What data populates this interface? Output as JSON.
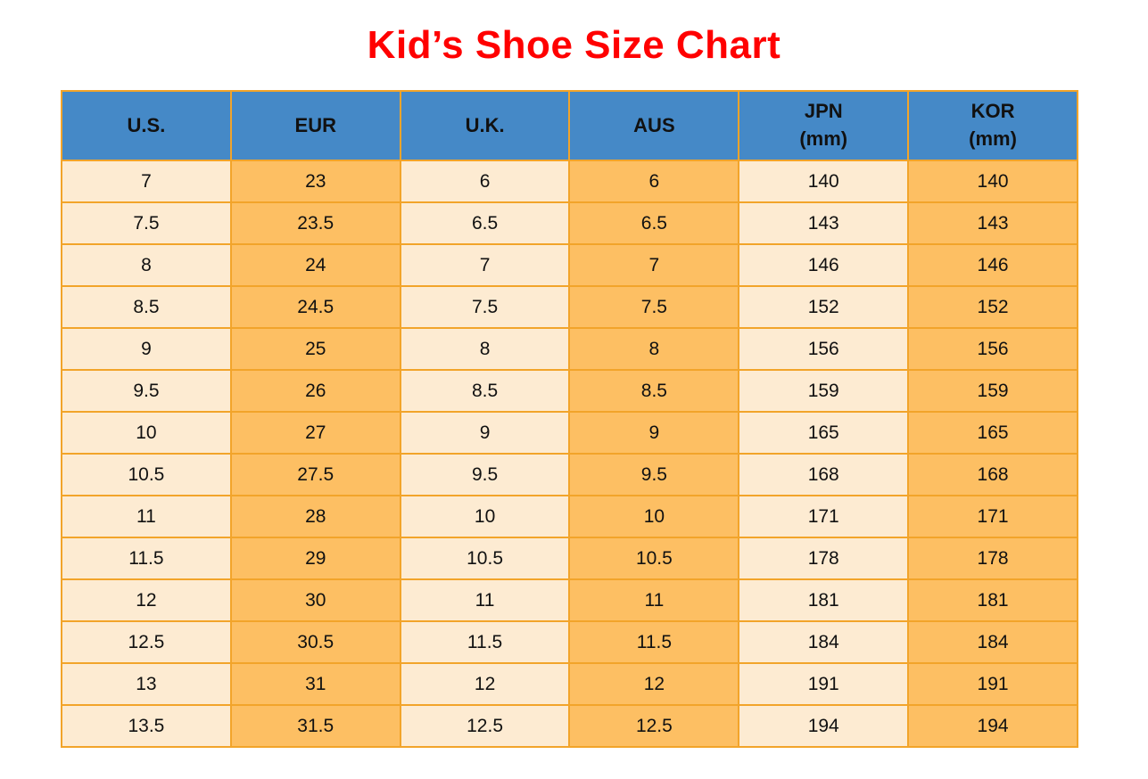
{
  "chart_data": {
    "type": "table",
    "title": "Kid’s Shoe Size Chart",
    "columns": [
      {
        "key": "us",
        "lines": [
          "U.S."
        ]
      },
      {
        "key": "eur",
        "lines": [
          "EUR"
        ]
      },
      {
        "key": "uk",
        "lines": [
          "U.K."
        ]
      },
      {
        "key": "aus",
        "lines": [
          "AUS"
        ]
      },
      {
        "key": "jpn",
        "lines": [
          "JPN",
          "(mm)"
        ]
      },
      {
        "key": "kor",
        "lines": [
          "KOR",
          "(mm)"
        ]
      }
    ],
    "rows": [
      [
        "7",
        "23",
        "6",
        "6",
        "140",
        "140"
      ],
      [
        "7.5",
        "23.5",
        "6.5",
        "6.5",
        "143",
        "143"
      ],
      [
        "8",
        "24",
        "7",
        "7",
        "146",
        "146"
      ],
      [
        "8.5",
        "24.5",
        "7.5",
        "7.5",
        "152",
        "152"
      ],
      [
        "9",
        "25",
        "8",
        "8",
        "156",
        "156"
      ],
      [
        "9.5",
        "26",
        "8.5",
        "8.5",
        "159",
        "159"
      ],
      [
        "10",
        "27",
        "9",
        "9",
        "165",
        "165"
      ],
      [
        "10.5",
        "27.5",
        "9.5",
        "9.5",
        "168",
        "168"
      ],
      [
        "11",
        "28",
        "10",
        "10",
        "171",
        "171"
      ],
      [
        "11.5",
        "29",
        "10.5",
        "10.5",
        "178",
        "178"
      ],
      [
        "12",
        "30",
        "11",
        "11",
        "181",
        "181"
      ],
      [
        "12.5",
        "30.5",
        "11.5",
        "11.5",
        "184",
        "184"
      ],
      [
        "13",
        "31",
        "12",
        "12",
        "191",
        "191"
      ],
      [
        "13.5",
        "31.5",
        "12.5",
        "12.5",
        "194",
        "194"
      ]
    ]
  },
  "colors": {
    "title_red": "#ff0000",
    "header_blue": "#4589c7",
    "cream": "#fdebd2",
    "orange": "#fdbf63",
    "border_orange": "#f2a42a",
    "text": "#111111"
  }
}
